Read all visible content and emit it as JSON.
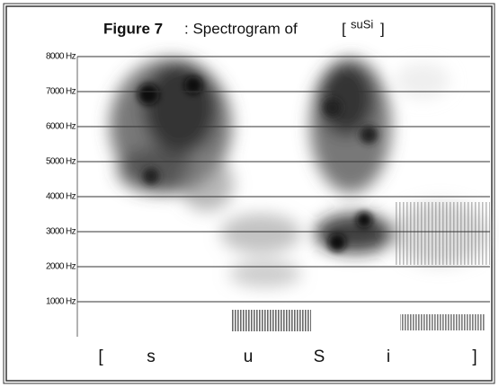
{
  "chart_data": {
    "type": "spectrogram",
    "title_parts": [
      "Figure 7",
      ": Spectrogram of",
      "[",
      "suSi",
      "]"
    ],
    "categories": [
      "[",
      "s",
      "u",
      "S",
      "i",
      "]"
    ],
    "ylim": [
      0,
      8000
    ],
    "yticks": [
      {
        "value": 1000,
        "label": "1000 Hz"
      },
      {
        "value": 2000,
        "label": "2000 Hz"
      },
      {
        "value": 3000,
        "label": "3000 Hz"
      },
      {
        "value": 4000,
        "label": "4000 Hz"
      },
      {
        "value": 5000,
        "label": "5000 Hz"
      },
      {
        "value": 6000,
        "label": "6000 Hz"
      },
      {
        "value": 7000,
        "label": "7000 Hz"
      },
      {
        "value": 8000,
        "label": "8000 Hz"
      }
    ],
    "grid": true
  }
}
